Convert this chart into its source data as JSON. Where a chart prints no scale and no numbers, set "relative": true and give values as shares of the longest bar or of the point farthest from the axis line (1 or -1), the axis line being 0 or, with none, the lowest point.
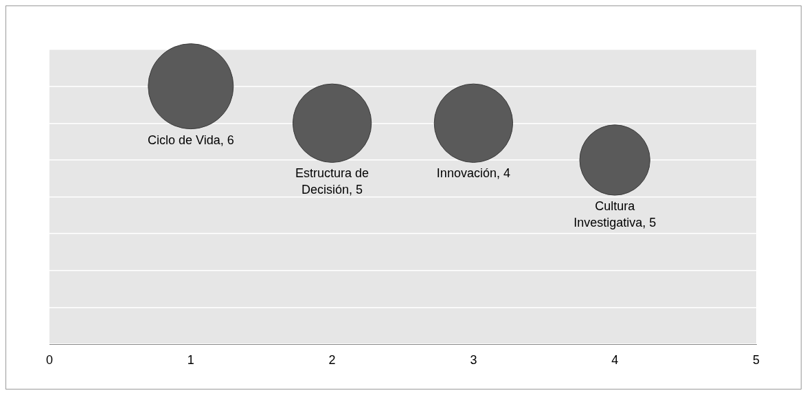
{
  "chart_data": {
    "type": "bubble",
    "relative": true,
    "x": [
      1,
      2,
      3,
      4
    ],
    "values": [
      1,
      0.857,
      0.857,
      0.714
    ],
    "sizes": [
      1,
      0.85,
      0.85,
      0.68
    ],
    "color": "#5a5a5a",
    "annotations": [
      "Ciclo de Vida, 6",
      "Estructura de Decisión, 5",
      "Innovación, 4",
      "Cultura Investigativa, 5"
    ],
    "xlim": [
      0,
      5
    ],
    "xticks": [
      0,
      1,
      2,
      3,
      4,
      5
    ],
    "grid": "y",
    "legend": false
  }
}
